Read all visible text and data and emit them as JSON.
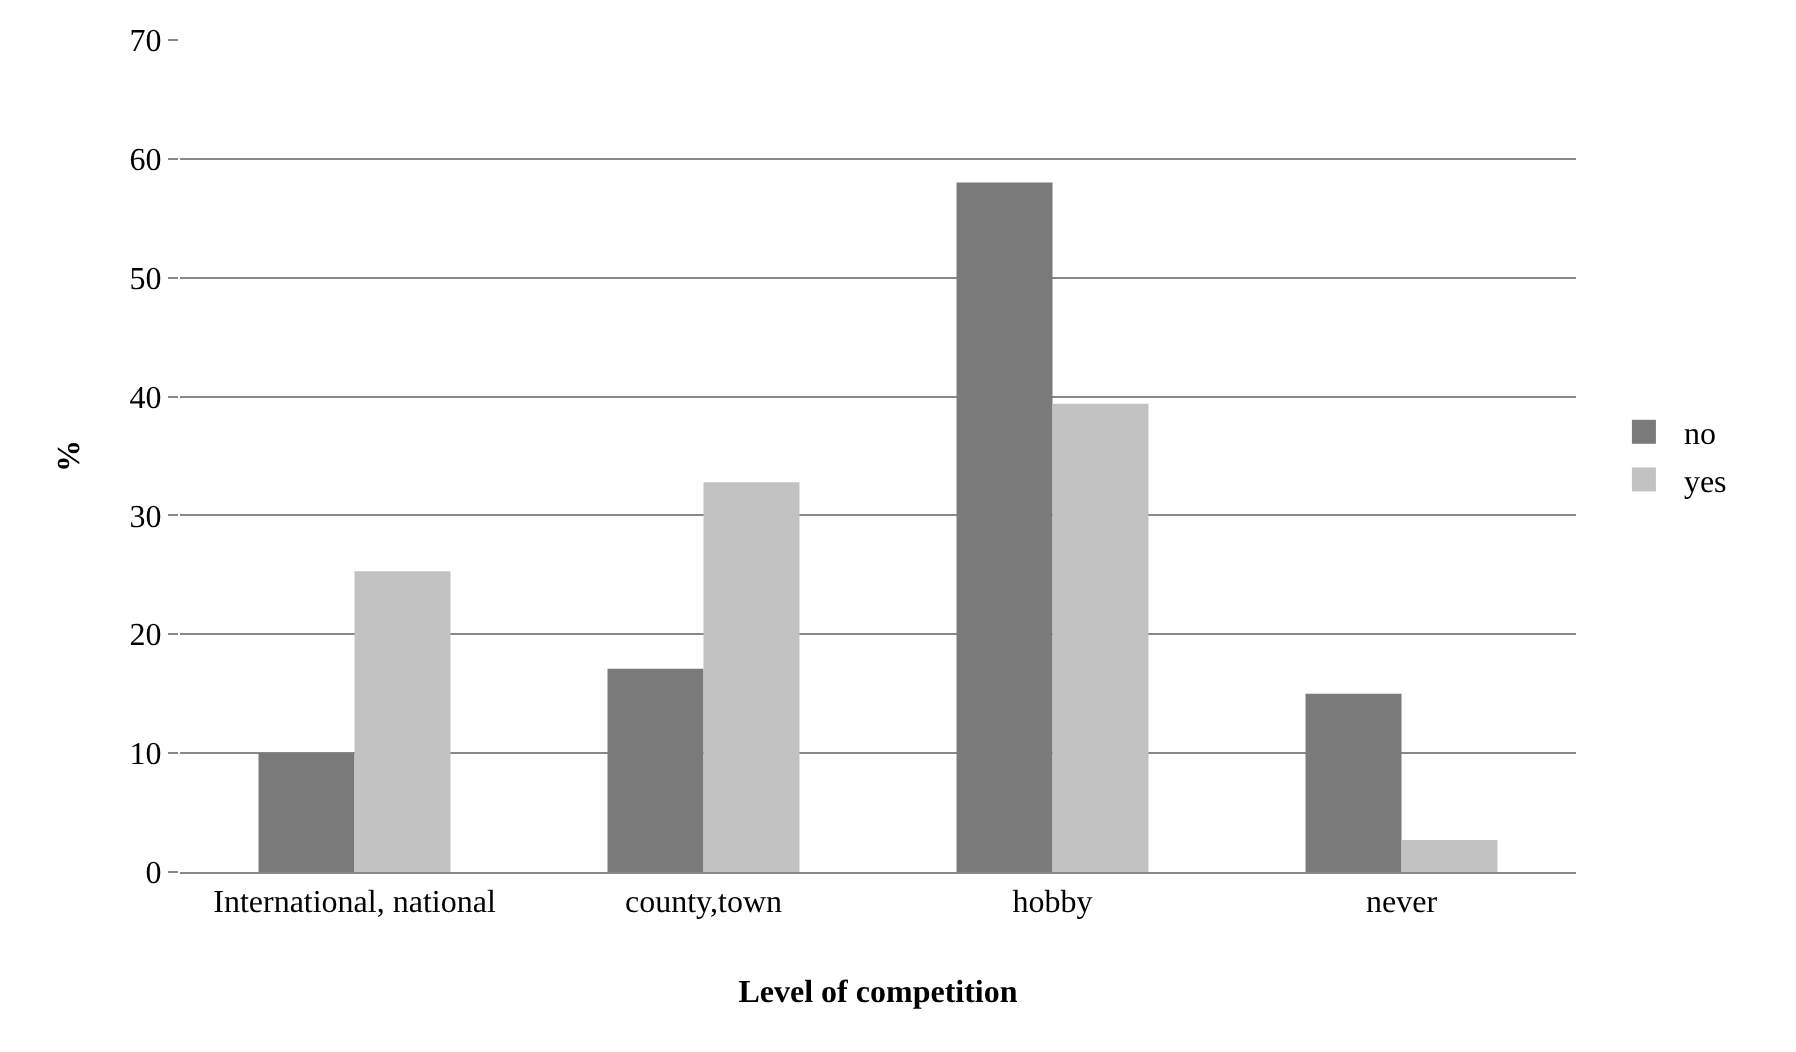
{
  "chart_data": {
    "type": "bar",
    "xlabel": "Level of competition",
    "ylabel": "%",
    "categories": [
      "International, national",
      "county,town",
      "hobby",
      "never"
    ],
    "series": [
      {
        "name": "no",
        "color": "#7a7a7a",
        "values": [
          10,
          17.1,
          58,
          15
        ]
      },
      {
        "name": "yes",
        "color": "#c2c2c2",
        "values": [
          25.3,
          32.8,
          39.4,
          2.7
        ]
      }
    ],
    "ylim": [
      0,
      70
    ],
    "yticks": [
      0,
      10,
      20,
      30,
      40,
      50,
      60,
      70
    ],
    "grid": "y",
    "legend": "right"
  }
}
